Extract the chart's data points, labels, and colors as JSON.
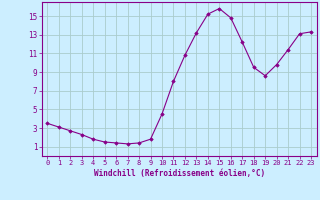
{
  "x": [
    0,
    1,
    2,
    3,
    4,
    5,
    6,
    7,
    8,
    9,
    10,
    11,
    12,
    13,
    14,
    15,
    16,
    17,
    18,
    19,
    20,
    21,
    22,
    23
  ],
  "y": [
    3.5,
    3.1,
    2.7,
    2.3,
    1.8,
    1.5,
    1.4,
    1.3,
    1.4,
    1.8,
    4.5,
    8.0,
    10.8,
    13.2,
    15.2,
    15.8,
    14.8,
    12.2,
    9.5,
    8.6,
    9.8,
    11.4,
    13.1,
    13.3
  ],
  "line_color": "#880088",
  "marker": "D",
  "marker_size": 1.8,
  "bg_color": "#cceeff",
  "grid_color": "#aacccc",
  "xlabel": "Windchill (Refroidissement éolien,°C)",
  "xlabel_color": "#880088",
  "tick_color": "#880088",
  "xlim": [
    -0.5,
    23.5
  ],
  "ylim": [
    0,
    16.5
  ],
  "yticks": [
    1,
    3,
    5,
    7,
    9,
    11,
    13,
    15
  ],
  "xticks": [
    0,
    1,
    2,
    3,
    4,
    5,
    6,
    7,
    8,
    9,
    10,
    11,
    12,
    13,
    14,
    15,
    16,
    17,
    18,
    19,
    20,
    21,
    22,
    23
  ],
  "spine_color": "#880088",
  "tick_fontsize": 5.0,
  "xlabel_fontsize": 5.5,
  "ytick_fontsize": 5.5
}
